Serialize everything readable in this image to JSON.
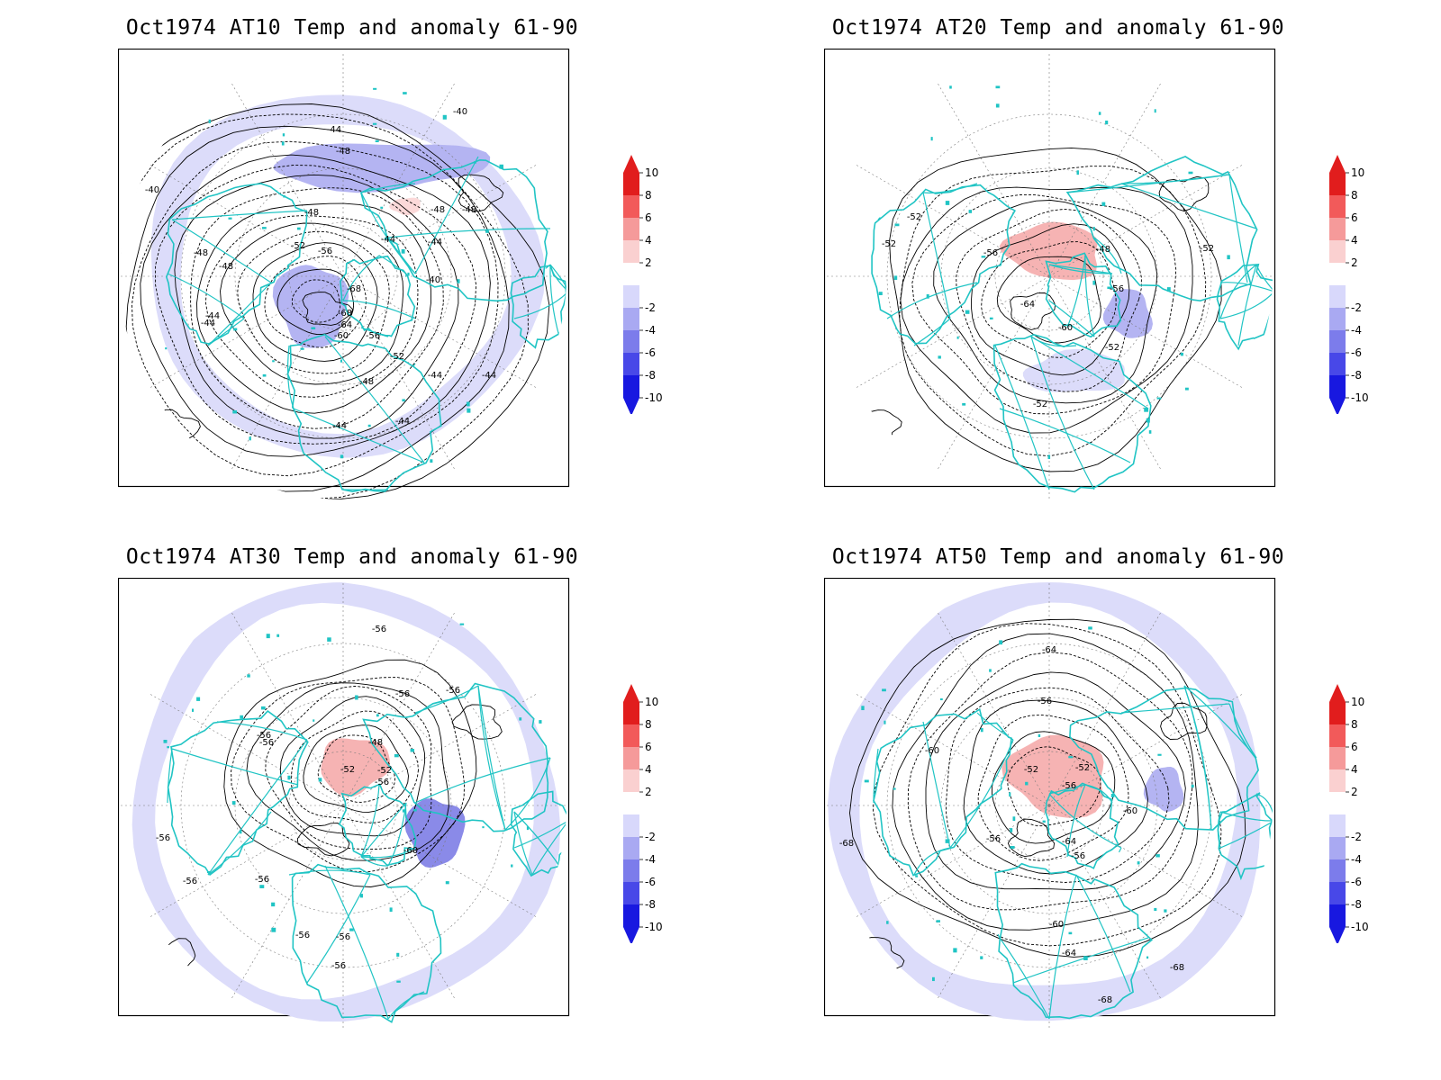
{
  "panels": [
    {
      "title": "Oct1974 AT10 Temp and anomaly 61-90",
      "contour_labels": [
        "-40",
        "-40",
        "-44",
        "-48",
        "-48",
        "-48",
        "-48",
        "-48",
        "-44",
        "-44",
        "-40",
        "-52",
        "-56",
        "-68",
        "-68",
        "-64",
        "-60",
        "-56",
        "-52",
        "-48",
        "-44",
        "-44",
        "-44",
        "-44",
        "-44",
        "-44",
        "-48"
      ],
      "anomalies": [
        {
          "kind": "ring",
          "level": -2
        },
        {
          "kind": "band",
          "level": -4
        },
        {
          "kind": "polar",
          "level": -4
        },
        {
          "kind": "blob",
          "level": 2
        }
      ]
    },
    {
      "title": "Oct1974 AT20 Temp and anomaly 61-90",
      "contour_labels": [
        "-52",
        "-52",
        "-56",
        "-48",
        "-64",
        "-60",
        "-56",
        "-52",
        "-52",
        "-52"
      ],
      "anomalies": [
        {
          "kind": "blob",
          "level": 4
        },
        {
          "kind": "blob",
          "level": -4
        },
        {
          "kind": "blob",
          "level": -2
        }
      ]
    },
    {
      "title": "Oct1974 AT30 Temp and anomaly 61-90",
      "contour_labels": [
        "-56",
        "-56",
        "-56",
        "-56",
        "-56",
        "-48",
        "-52",
        "-52",
        "-56",
        "-60",
        "-56",
        "-56",
        "-56",
        "-56",
        "-56",
        "-56"
      ],
      "anomalies": [
        {
          "kind": "arc",
          "level": -2
        },
        {
          "kind": "blob",
          "level": 4
        },
        {
          "kind": "blob",
          "level": -6
        }
      ]
    },
    {
      "title": "Oct1974 AT50 Temp and anomaly 61-90",
      "contour_labels": [
        "-64",
        "-56",
        "-60",
        "-52",
        "-52",
        "-56",
        "-60",
        "-64",
        "-68",
        "-56",
        "-56",
        "-60",
        "-64",
        "-68",
        "-68"
      ],
      "anomalies": [
        {
          "kind": "blob",
          "level": 4
        },
        {
          "kind": "blob",
          "level": -4
        },
        {
          "kind": "rim",
          "level": -2
        }
      ]
    }
  ],
  "colorbar": {
    "labels": [
      "10",
      "8",
      "6",
      "4",
      "2",
      "-2",
      "-4",
      "-6",
      "-8",
      "-10"
    ],
    "colors": [
      "#e11d1d",
      "#f25a5a",
      "#f59a9a",
      "#fad0d0",
      "#ffffff",
      "#d8d8fb",
      "#a9a9f2",
      "#7c7ceb",
      "#4848e8",
      "#1818e0"
    ]
  },
  "map_colors": {
    "coast": "#20c4c4",
    "contour": "#000000",
    "grid": "#7a7a7a",
    "anomaly": {
      "2": "#fbd9d9",
      "4": "#f6b3b3",
      "-2": "#dcdcfa",
      "-4": "#b4b4f2",
      "-6": "#8a8ae8"
    }
  }
}
